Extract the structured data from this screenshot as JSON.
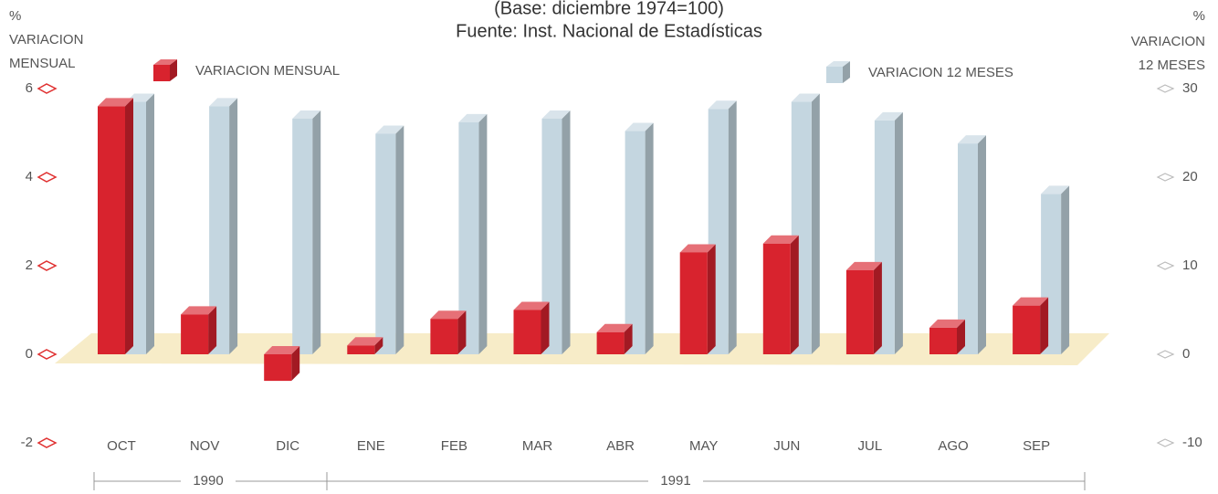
{
  "chart_data": {
    "type": "bar3d",
    "subtitle": [
      "(Base: diciembre 1974=100)",
      "Fuente: Inst. Nacional de Estadísticas"
    ],
    "y_label": [
      "%",
      "VARIACION",
      "MENSUAL"
    ],
    "y2_label": [
      "%",
      "VARIACION",
      "12 MESES"
    ],
    "categories": [
      "OCT",
      "NOV",
      "DIC",
      "ENE",
      "FEB",
      "MAR",
      "ABR",
      "MAY",
      "JUN",
      "JUL",
      "AGO",
      "SEP"
    ],
    "periods": [
      "1990",
      "1991"
    ],
    "series": [
      {
        "name": "VARIACION MENSUAL",
        "color": "#d8232e",
        "values": [
          5.6,
          0.9,
          -0.6,
          0.2,
          0.8,
          1.0,
          0.5,
          2.3,
          2.5,
          1.9,
          0.6,
          1.1
        ]
      },
      {
        "name": "VARIACION 12 MESES",
        "color": "#c4d6e0",
        "axis": "y2",
        "values": [
          28.5,
          28,
          26.6,
          24.9,
          26.2,
          26.6,
          25.2,
          27.7,
          28.5,
          26.4,
          23.8,
          18.1
        ]
      }
    ],
    "ylim": [
      -2,
      6
    ],
    "yticks": [
      6,
      4,
      2,
      0,
      -2
    ],
    "y2lim": [
      -10,
      30
    ],
    "y2ticks": [
      30,
      20,
      10,
      0,
      -10
    ]
  }
}
